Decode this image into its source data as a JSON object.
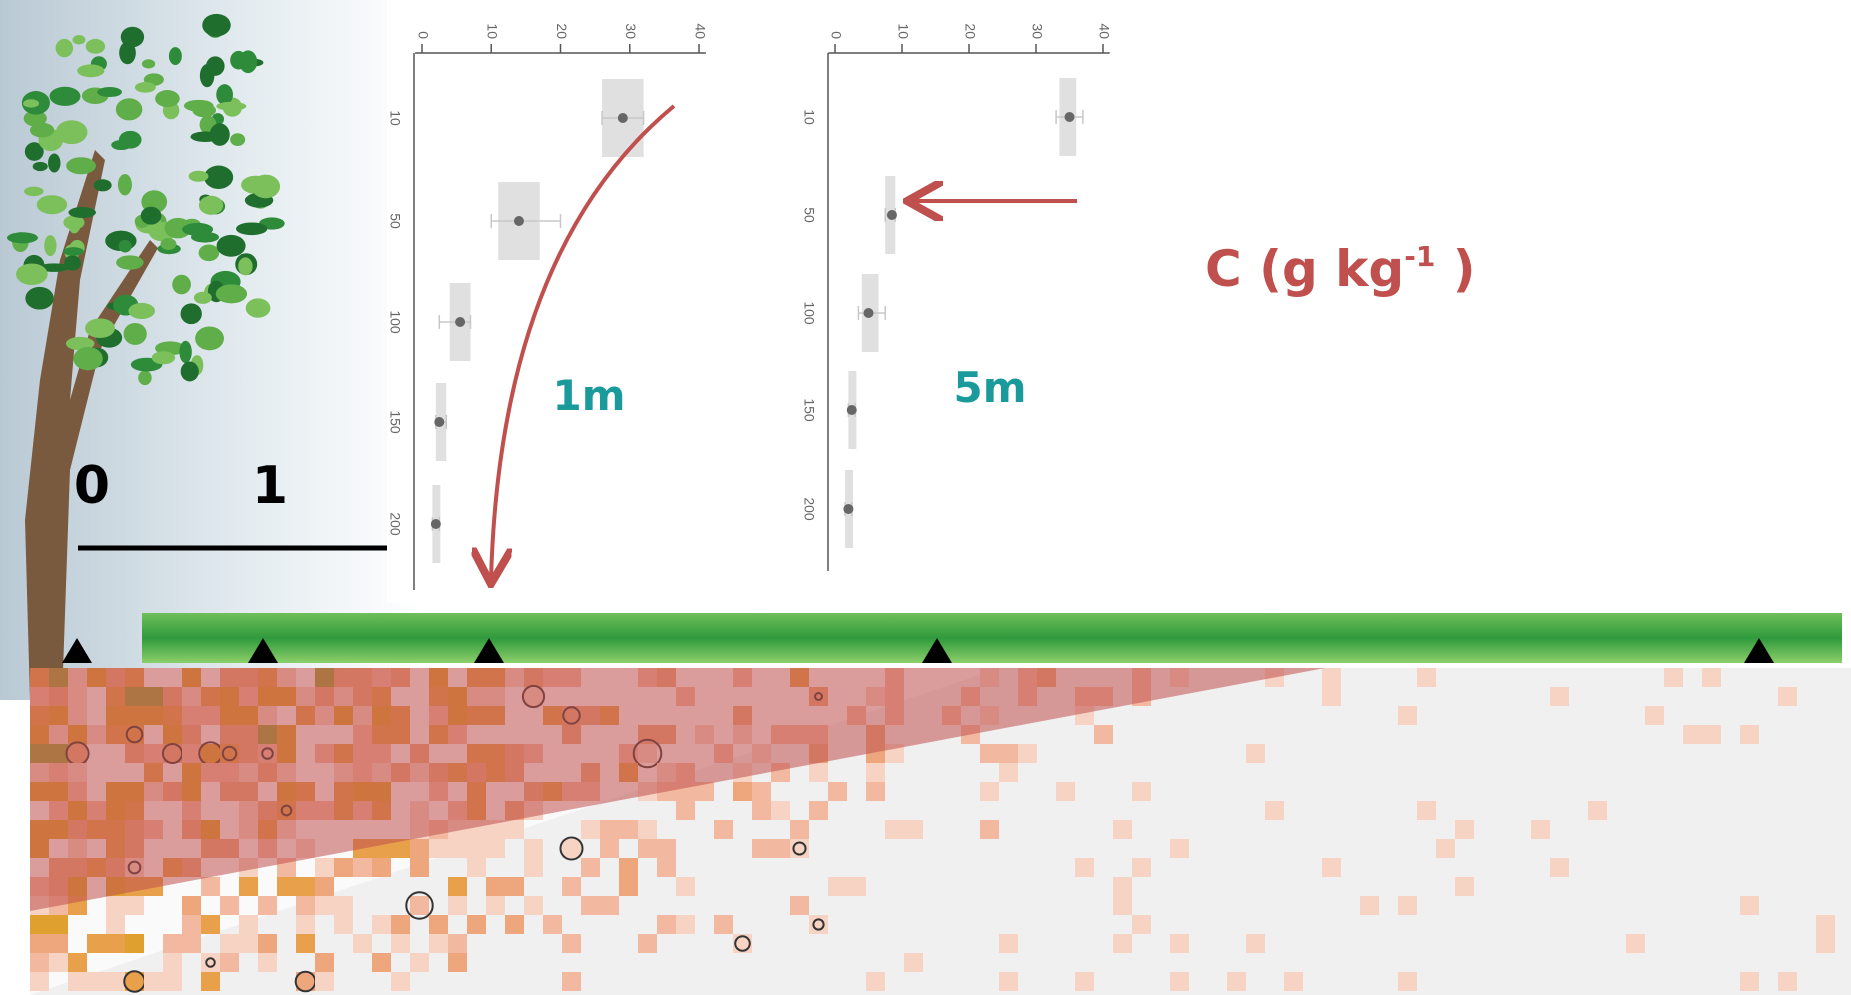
{
  "chart_data": [
    {
      "type": "box",
      "label": "1m",
      "categories": [
        "10",
        "50",
        "100",
        "150",
        "200"
      ],
      "xlim": [
        -1,
        41
      ],
      "xticks": [
        0,
        10,
        20,
        30,
        40
      ],
      "whisker_low": [
        26,
        10,
        2.5,
        2,
        1.5
      ],
      "q1": [
        26,
        11,
        4,
        2,
        1.5
      ],
      "median": [
        29,
        14,
        5.5,
        2.5,
        2
      ],
      "q3": [
        32,
        17,
        7,
        3.5,
        2.5
      ],
      "whisker_high": [
        32,
        20,
        7,
        3.5,
        2.5
      ],
      "color": "#e0e0e0"
    },
    {
      "type": "box",
      "label": "5m",
      "categories": [
        "10",
        "50",
        "100",
        "150",
        "200"
      ],
      "xlim": [
        -1,
        41
      ],
      "xticks": [
        0,
        10,
        20,
        30,
        40
      ],
      "whisker_low": [
        33,
        7.5,
        3.5,
        2,
        1.5
      ],
      "q1": [
        33.5,
        7.5,
        4,
        2,
        1.5
      ],
      "median": [
        35,
        8.5,
        5,
        2.5,
        2
      ],
      "q3": [
        36,
        9,
        6.5,
        3,
        2.5
      ],
      "whisker_high": [
        37,
        9,
        7.5,
        3,
        2.5
      ],
      "color": "#e0e0e0"
    }
  ],
  "annotations": {
    "unit": {
      "text": "C (g kg",
      "sup": "-1",
      "tail": " )"
    },
    "scale_labels": [
      "0",
      "1"
    ]
  }
}
